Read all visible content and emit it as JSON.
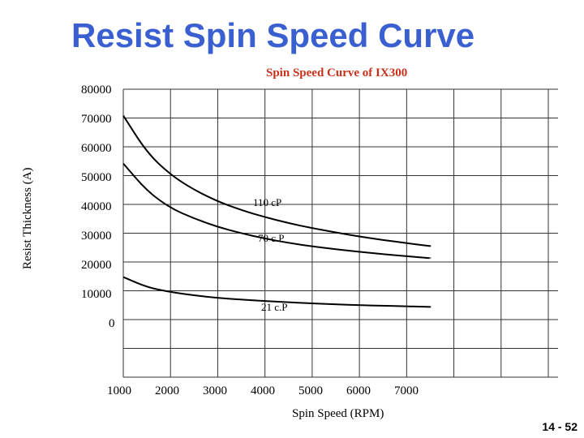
{
  "slide": {
    "title": "Resist Spin Speed Curve",
    "page_number": "14 - 52"
  },
  "chart_data": {
    "type": "line",
    "title": "Spin Speed Curve of IX300",
    "xlabel": "Spin Speed (RPM)",
    "ylabel": "Resist Thickness (A)",
    "x_ticks": [
      "1000",
      "2000",
      "3000",
      "4000",
      "5000",
      "6000",
      "7000"
    ],
    "y_ticks": [
      "80000",
      "70000",
      "60000",
      "50000",
      "40000",
      "30000",
      "20000",
      "10000",
      "0"
    ],
    "grid": true,
    "series": [
      {
        "name": "110 cP",
        "x": [
          1000,
          1500,
          2000,
          2500,
          3000,
          3500,
          4000,
          4500,
          5000,
          5500,
          6000,
          6500,
          7000,
          7500
        ],
        "y": [
          71500,
          58800,
          51100,
          45900,
          41900,
          38900,
          36500,
          34400,
          32700,
          31200,
          29800,
          28600,
          27500,
          26500
        ],
        "color": "#000000"
      },
      {
        "name": "70 c.P",
        "x": [
          1000,
          1500,
          2000,
          2500,
          3000,
          3500,
          4000,
          4500,
          5000,
          5500,
          6000,
          6500,
          7000,
          7500
        ],
        "y": [
          55000,
          45500,
          39600,
          36000,
          33100,
          30900,
          29100,
          27600,
          26400,
          25400,
          24500,
          23700,
          23000,
          22300
        ],
        "color": "#000000"
      },
      {
        "name": "21 c.P",
        "x": [
          1000,
          1500,
          2000,
          2500,
          3000,
          3500,
          4000,
          4500,
          5000,
          5500,
          6000,
          6500,
          7000,
          7500
        ],
        "y": [
          15800,
          12300,
          10600,
          9500,
          8600,
          8000,
          7500,
          7100,
          6700,
          6400,
          6100,
          5900,
          5700,
          5500
        ],
        "color": "#000000"
      }
    ]
  }
}
